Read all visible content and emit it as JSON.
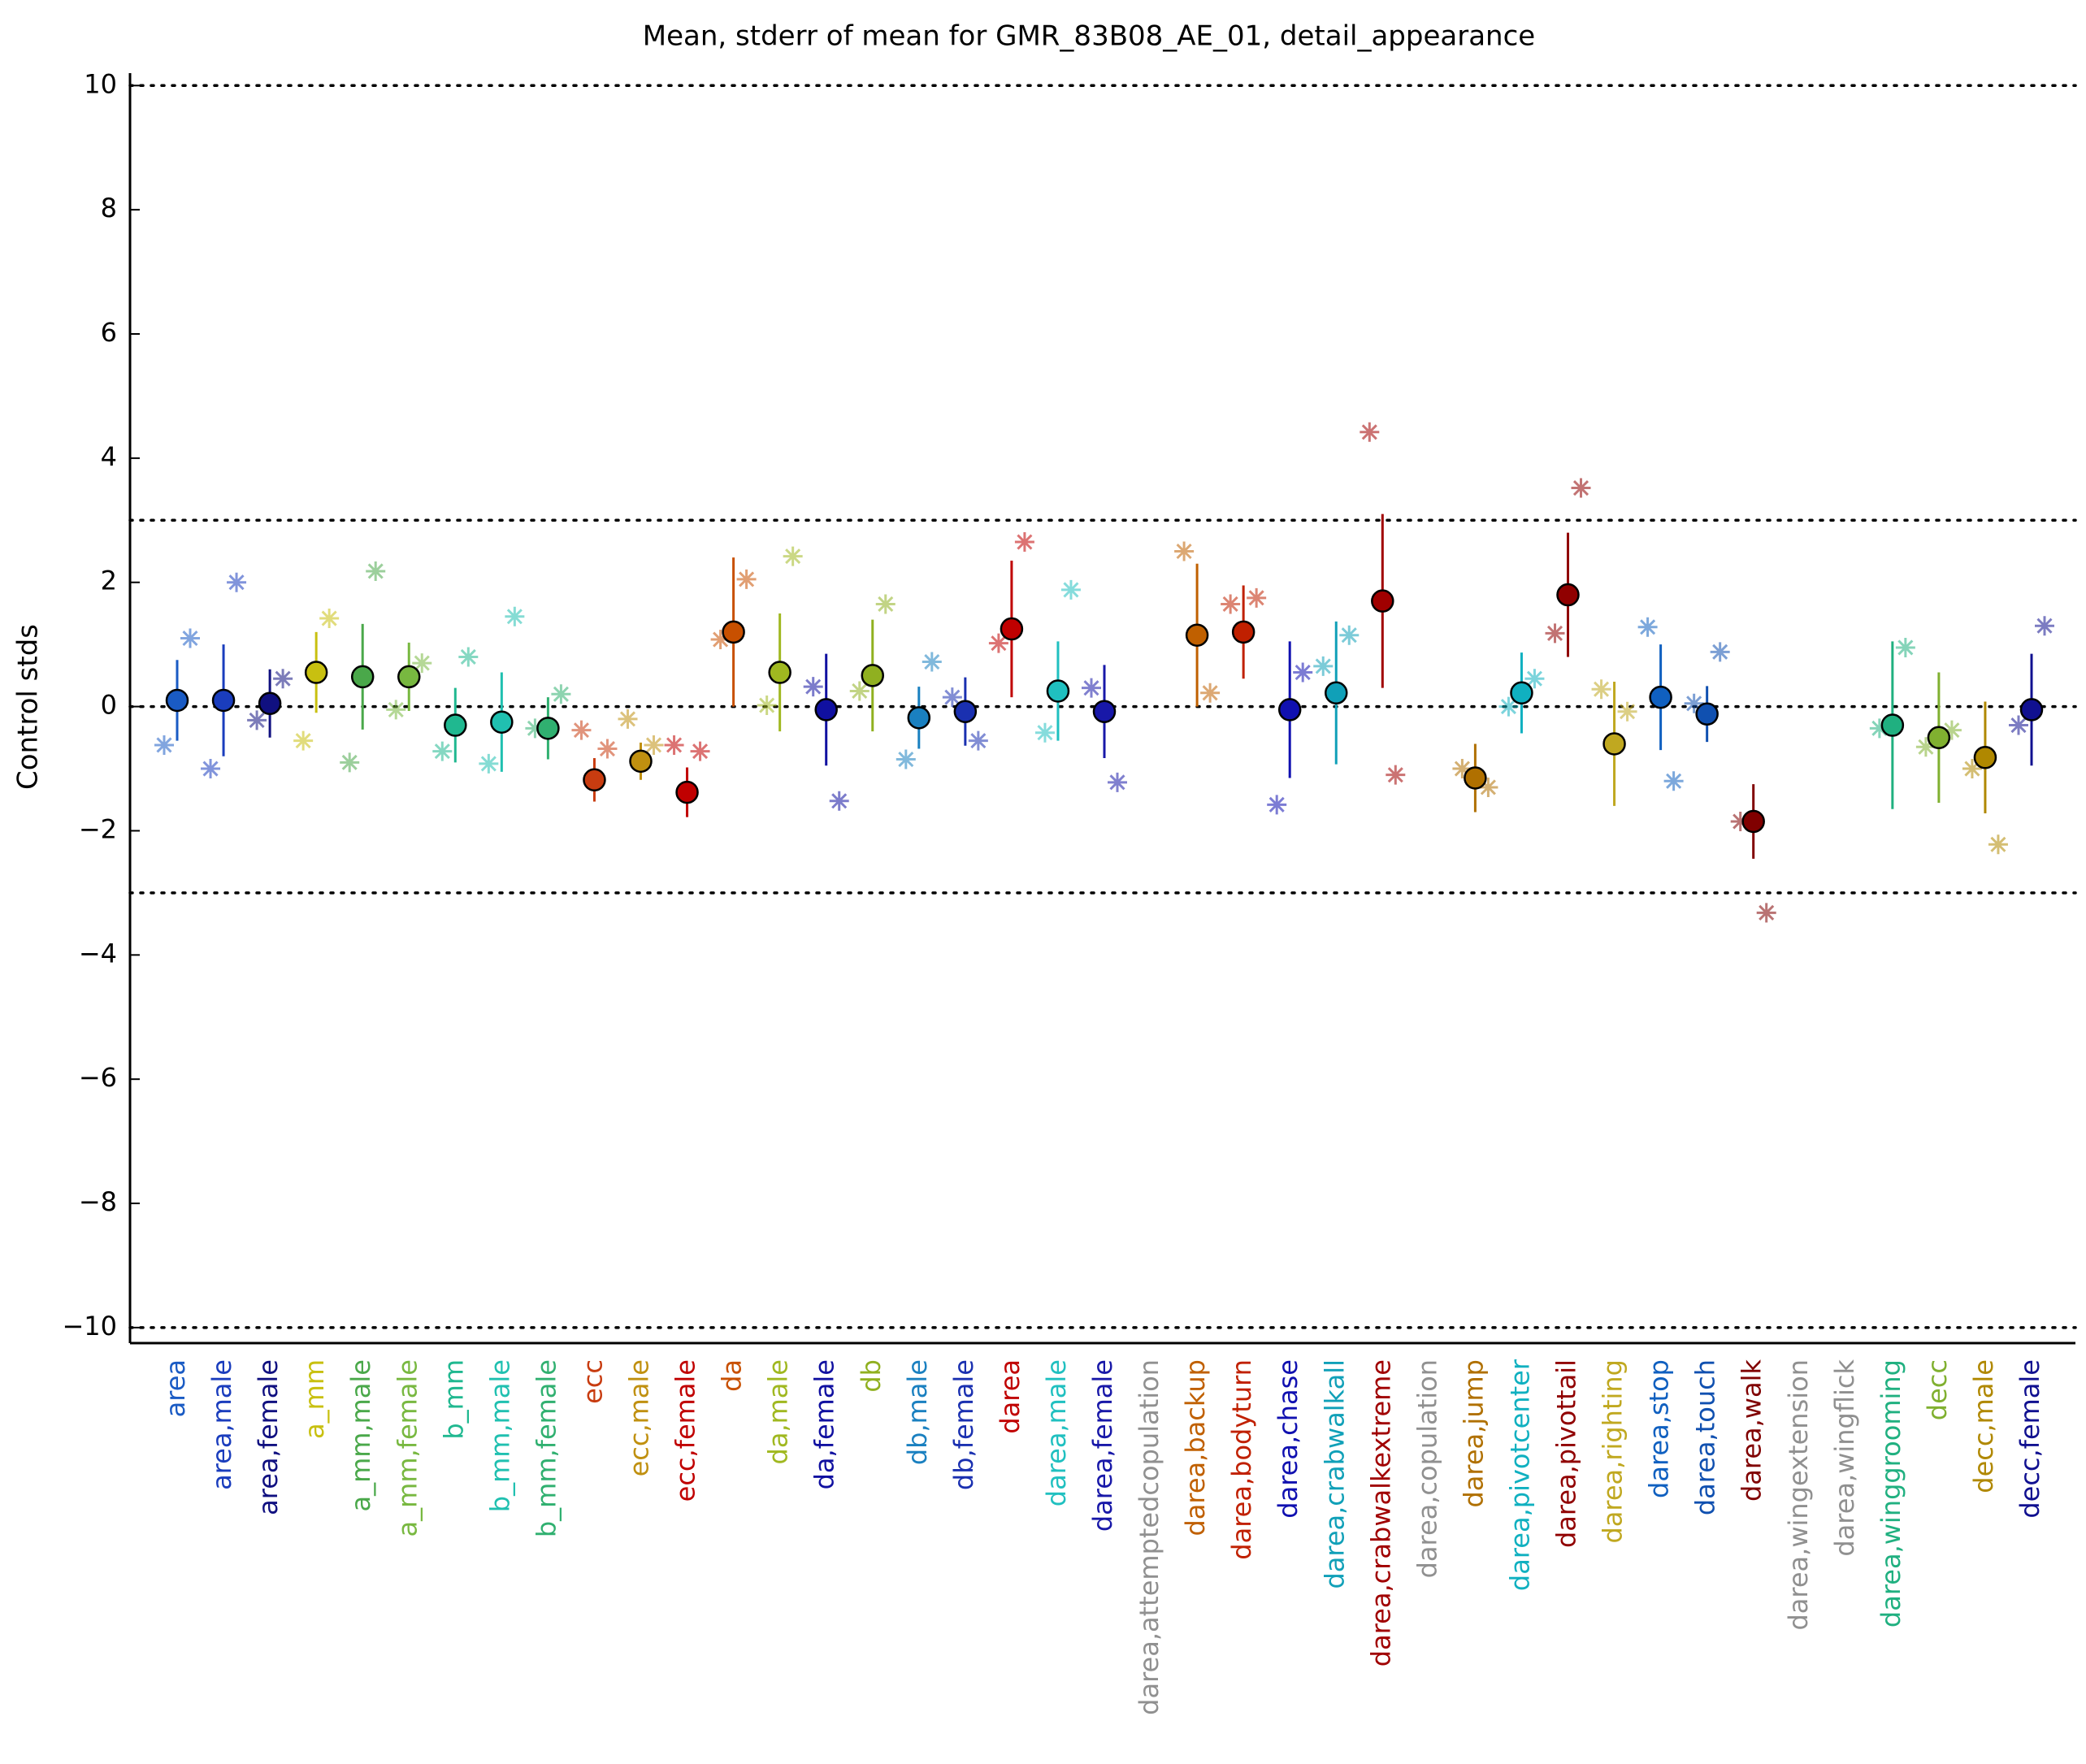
{
  "chart_data": {
    "type": "errorbar",
    "title": "Mean, stderr of mean for GMR_83B08_AE_01, detail_appearance",
    "y_label": "Control stds",
    "ylim": [
      -10.25,
      10.2
    ],
    "yticks": [
      {
        "value": -10,
        "label": "−10"
      },
      {
        "value": -8,
        "label": "−8"
      },
      {
        "value": -6,
        "label": "−6"
      },
      {
        "value": -4,
        "label": "−4"
      },
      {
        "value": -2,
        "label": "−2"
      },
      0,
      2,
      4,
      6,
      8,
      10
    ],
    "hlines": [
      -10,
      -3,
      0,
      3,
      10
    ],
    "categories": [
      "area",
      "area,male",
      "area,female",
      "a_mm",
      "a_mm,male",
      "a_mm,female",
      "b_mm",
      "b_mm,male",
      "b_mm,female",
      "ecc",
      "ecc,male",
      "ecc,female",
      "da",
      "da,male",
      "da,female",
      "db",
      "db,male",
      "db,female",
      "darea",
      "darea,male",
      "darea,female",
      "darea,attemptedcopulation",
      "darea,backup",
      "darea,bodyturn",
      "darea,chase",
      "darea,crabwalkall",
      "darea,crabwalkextreme",
      "darea,copulation",
      "darea,jump",
      "darea,pivotcenter",
      "darea,pivottail",
      "darea,righting",
      "darea,stop",
      "darea,touch",
      "darea,walk",
      "darea,wingextension",
      "darea,wingflick",
      "darea,winggrooming",
      "decc",
      "decc,male",
      "decc,female"
    ],
    "colors": [
      "#1a5bc4",
      "#1a3dbd",
      "#101080",
      "#c8c010",
      "#4aa84a",
      "#78b840",
      "#20b890",
      "#20c0b0",
      "#30b070",
      "#c83c10",
      "#c09010",
      "#c00000",
      "#c85000",
      "#a0b820",
      "#1010a0",
      "#90b020",
      "#1a80c0",
      "#1a30b0",
      "#c00000",
      "#20c0c0",
      "#1818a8",
      "#909090",
      "#c06000",
      "#c02000",
      "#1010b0",
      "#10a0b8",
      "#a00000",
      "#909090",
      "#b07000",
      "#10b0c0",
      "#900000",
      "#c0a820",
      "#1060c0",
      "#1050b0",
      "#800000",
      "#909090",
      "#909090",
      "#20b080",
      "#80b030",
      "#b08800",
      "#101090"
    ],
    "values": [
      0.1,
      0.1,
      0.05,
      0.55,
      0.48,
      0.48,
      -0.3,
      -0.25,
      -0.35,
      -1.18,
      -0.88,
      -1.38,
      1.2,
      0.55,
      -0.05,
      0.5,
      -0.18,
      -0.08,
      1.25,
      0.25,
      -0.08,
      null,
      1.15,
      1.2,
      -0.05,
      0.22,
      1.7,
      null,
      -1.15,
      0.22,
      1.8,
      -0.6,
      0.15,
      -0.12,
      -1.85,
      null,
      null,
      -0.3,
      -0.5,
      -0.82,
      -0.05
    ],
    "errors": [
      0.65,
      0.9,
      0.55,
      0.65,
      0.85,
      0.55,
      0.6,
      0.8,
      0.5,
      0.35,
      0.3,
      0.4,
      1.2,
      0.95,
      0.9,
      0.9,
      0.5,
      0.55,
      1.1,
      0.8,
      0.75,
      null,
      1.15,
      0.75,
      1.1,
      1.15,
      1.4,
      null,
      0.55,
      0.65,
      1.0,
      1.0,
      0.85,
      0.45,
      0.6,
      null,
      null,
      1.35,
      1.05,
      0.9,
      0.9
    ],
    "star_left": [
      -0.62,
      -1.0,
      -0.22,
      -0.55,
      -0.9,
      -0.05,
      -0.72,
      -0.92,
      -0.35,
      -0.38,
      -0.2,
      -0.62,
      1.08,
      0.02,
      0.32,
      0.25,
      -0.85,
      0.15,
      1.02,
      -0.42,
      0.3,
      null,
      2.5,
      1.65,
      -1.58,
      0.65,
      4.42,
      null,
      -1.0,
      0.0,
      1.18,
      0.28,
      1.28,
      0.05,
      -1.85,
      null,
      null,
      -0.35,
      -0.65,
      -1.0,
      -0.3
    ],
    "star_right": [
      1.1,
      2.0,
      0.45,
      1.42,
      2.18,
      0.7,
      0.8,
      1.45,
      0.2,
      -0.68,
      -0.62,
      -0.72,
      2.05,
      2.42,
      -1.52,
      1.65,
      0.72,
      -0.55,
      2.65,
      1.88,
      -1.22,
      null,
      0.22,
      1.75,
      0.55,
      1.15,
      -1.1,
      null,
      -1.3,
      0.45,
      3.52,
      -0.08,
      -1.2,
      0.88,
      -3.32,
      null,
      null,
      0.95,
      -0.38,
      -2.22,
      1.3
    ]
  }
}
